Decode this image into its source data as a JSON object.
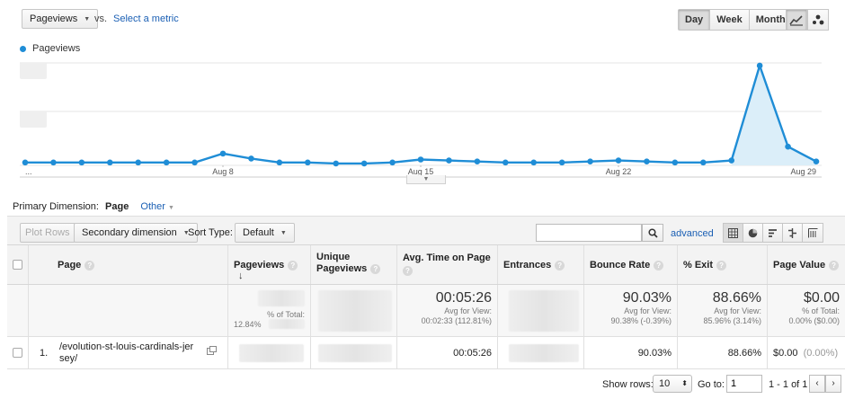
{
  "metric_selector": {
    "value": "Pageviews",
    "vs_label": "vs.",
    "select_metric_label": "Select a metric"
  },
  "granularity": {
    "day": "Day",
    "week": "Week",
    "month": "Month",
    "active": "Day"
  },
  "legend": {
    "series_name": "Pageviews",
    "color": "#1f8dd6"
  },
  "chart_data": {
    "type": "area",
    "x_ticks": [
      "...",
      "Aug 8",
      "Aug 15",
      "Aug 22",
      "Aug 29"
    ],
    "series": [
      {
        "name": "Pageviews",
        "values": [
          2,
          2,
          2,
          2,
          2,
          2,
          2,
          11,
          6,
          2,
          2,
          1,
          1,
          2,
          5,
          4,
          3,
          2,
          2,
          2,
          3,
          4,
          3,
          2,
          2,
          4,
          100,
          18,
          3
        ]
      }
    ],
    "grid": true
  },
  "primary_dimension": {
    "label": "Primary Dimension:",
    "value": "Page",
    "other_label": "Other"
  },
  "toolbar": {
    "plot_rows": "Plot Rows",
    "secondary_dimension": "Secondary dimension",
    "sort_type_label": "Sort Type:",
    "sort_type_value": "Default",
    "search_value": "",
    "advanced": "advanced"
  },
  "table": {
    "headers": {
      "page": "Page",
      "pageviews": "Pageviews",
      "unique_pageviews": "Unique Pageviews",
      "avg_time": "Avg. Time on Page",
      "entrances": "Entrances",
      "bounce_rate": "Bounce Rate",
      "exit": "% Exit",
      "page_value": "Page Value"
    },
    "summary": {
      "pageviews_pct_label": "% of Total:",
      "pageviews_pct": "12.84%",
      "avg_time": "00:05:26",
      "avg_time_sub1": "Avg for View:",
      "avg_time_sub2": "00:02:33 (112.81%)",
      "bounce": "90.03%",
      "bounce_sub1": "Avg for View:",
      "bounce_sub2": "90.38% (-0.39%)",
      "exit": "88.66%",
      "exit_sub1": "Avg for View:",
      "exit_sub2": "85.96% (3.14%)",
      "value": "$0.00",
      "value_sub1": "% of Total:",
      "value_sub2": "0.00% ($0.00)"
    },
    "rows": [
      {
        "index": "1.",
        "page": "/evolution-st-louis-cardinals-jersey/",
        "avg_time": "00:05:26",
        "bounce": "90.03%",
        "exit": "88.66%",
        "value": "$0.00",
        "value_pct": "(0.00%)"
      }
    ]
  },
  "pagination": {
    "show_rows_label": "Show rows:",
    "show_rows_value": "10",
    "goto_label": "Go to:",
    "goto_value": "1",
    "range": "1 - 1 of 1"
  }
}
